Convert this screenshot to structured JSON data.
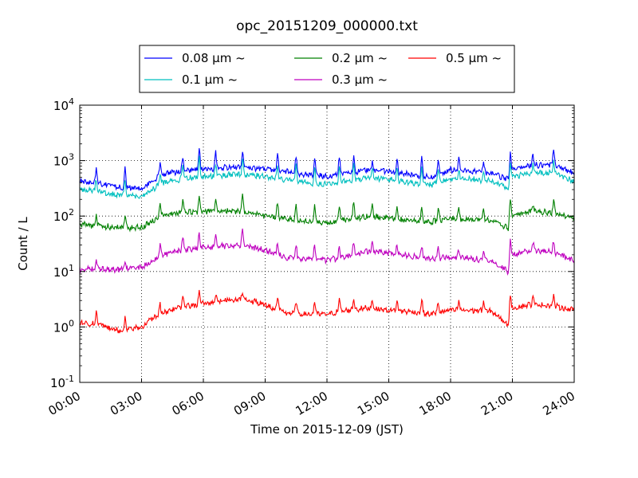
{
  "chart_data": {
    "type": "line",
    "title": "opc_20151209_000000.txt",
    "xlabel": "Time on 2015-12-09 (JST)",
    "ylabel": "Count / L",
    "yscale": "log",
    "xlim_hours": [
      0,
      24
    ],
    "ylim": [
      0.1,
      10000
    ],
    "grid": true,
    "legend_location": "top-center",
    "x_ticks": [
      {
        "value": 0,
        "label": "00:00"
      },
      {
        "value": 3,
        "label": "03:00"
      },
      {
        "value": 6,
        "label": "06:00"
      },
      {
        "value": 9,
        "label": "09:00"
      },
      {
        "value": 12,
        "label": "12:00"
      },
      {
        "value": 15,
        "label": "15:00"
      },
      {
        "value": 18,
        "label": "18:00"
      },
      {
        "value": 21,
        "label": "21:00"
      },
      {
        "value": 24,
        "label": "24:00"
      }
    ],
    "y_ticks": [
      {
        "value": 0.1,
        "base": "10",
        "exp": "-1"
      },
      {
        "value": 1,
        "base": "10",
        "exp": "0"
      },
      {
        "value": 10,
        "base": "10",
        "exp": "1"
      },
      {
        "value": 100,
        "base": "10",
        "exp": "2"
      },
      {
        "value": 1000,
        "base": "10",
        "exp": "3"
      },
      {
        "value": 10000,
        "base": "10",
        "exp": "4"
      }
    ],
    "series": [
      {
        "name": "0.08 μm ~",
        "color": "#0000ff",
        "x": [
          0,
          1,
          2,
          3,
          3.5,
          4,
          5,
          6,
          7,
          8,
          9,
          10,
          11,
          12,
          13,
          14,
          15,
          16,
          17,
          18,
          19,
          20,
          20.8,
          21,
          22,
          23,
          24
        ],
        "y": [
          420,
          380,
          330,
          310,
          420,
          560,
          650,
          700,
          740,
          760,
          700,
          640,
          560,
          520,
          600,
          680,
          640,
          560,
          500,
          680,
          640,
          600,
          460,
          720,
          820,
          820,
          600
        ],
        "spikes": [
          {
            "x": 0.8,
            "y": 700
          },
          {
            "x": 2.2,
            "y": 720
          },
          {
            "x": 3.9,
            "y": 920
          },
          {
            "x": 5.0,
            "y": 1200
          },
          {
            "x": 5.8,
            "y": 1650
          },
          {
            "x": 6.6,
            "y": 1400
          },
          {
            "x": 7.9,
            "y": 1600
          },
          {
            "x": 9.6,
            "y": 1200
          },
          {
            "x": 10.5,
            "y": 1200
          },
          {
            "x": 11.4,
            "y": 1100
          },
          {
            "x": 12.6,
            "y": 1200
          },
          {
            "x": 13.3,
            "y": 1200
          },
          {
            "x": 14.2,
            "y": 1000
          },
          {
            "x": 15.4,
            "y": 1000
          },
          {
            "x": 16.6,
            "y": 1100
          },
          {
            "x": 17.4,
            "y": 1100
          },
          {
            "x": 18.4,
            "y": 1100
          },
          {
            "x": 19.6,
            "y": 950
          },
          {
            "x": 20.9,
            "y": 1400
          },
          {
            "x": 22.0,
            "y": 1300
          },
          {
            "x": 23.0,
            "y": 1550
          }
        ]
      },
      {
        "name": "0.1 μm ~",
        "color": "#00bfbf",
        "x": [
          0,
          1,
          2,
          3,
          3.5,
          4,
          5,
          6,
          7,
          8,
          9,
          10,
          11,
          12,
          13,
          14,
          15,
          16,
          17,
          18,
          19,
          20,
          20.8,
          21,
          22,
          23,
          24
        ],
        "y": [
          300,
          270,
          240,
          230,
          300,
          400,
          470,
          520,
          540,
          560,
          510,
          460,
          400,
          370,
          430,
          490,
          460,
          400,
          360,
          480,
          460,
          430,
          320,
          520,
          600,
          600,
          420
        ],
        "spikes": [
          {
            "x": 0.8,
            "y": 480
          },
          {
            "x": 2.2,
            "y": 480
          },
          {
            "x": 3.9,
            "y": 620
          },
          {
            "x": 5.0,
            "y": 800
          },
          {
            "x": 5.8,
            "y": 1100
          },
          {
            "x": 6.6,
            "y": 900
          },
          {
            "x": 7.9,
            "y": 1050
          },
          {
            "x": 9.6,
            "y": 800
          },
          {
            "x": 10.5,
            "y": 800
          },
          {
            "x": 11.4,
            "y": 700
          },
          {
            "x": 12.6,
            "y": 800
          },
          {
            "x": 13.3,
            "y": 800
          },
          {
            "x": 14.2,
            "y": 700
          },
          {
            "x": 15.4,
            "y": 680
          },
          {
            "x": 16.6,
            "y": 720
          },
          {
            "x": 17.4,
            "y": 720
          },
          {
            "x": 18.4,
            "y": 700
          },
          {
            "x": 19.6,
            "y": 640
          },
          {
            "x": 20.9,
            "y": 950
          },
          {
            "x": 22.0,
            "y": 880
          },
          {
            "x": 23.0,
            "y": 1050
          }
        ]
      },
      {
        "name": "0.2 μm ~",
        "color": "#008000",
        "x": [
          0,
          1,
          2,
          3,
          3.5,
          4,
          5,
          6,
          7,
          8,
          9,
          10,
          11,
          12,
          13,
          14,
          15,
          16,
          17,
          18,
          19,
          20,
          20.8,
          21,
          22,
          23,
          24
        ],
        "y": [
          72,
          66,
          62,
          62,
          80,
          105,
          115,
          122,
          125,
          118,
          100,
          88,
          80,
          75,
          88,
          100,
          92,
          82,
          78,
          90,
          88,
          84,
          60,
          105,
          120,
          115,
          90
        ],
        "spikes": [
          {
            "x": 0.8,
            "y": 110
          },
          {
            "x": 2.2,
            "y": 110
          },
          {
            "x": 3.9,
            "y": 160
          },
          {
            "x": 5.0,
            "y": 200
          },
          {
            "x": 5.8,
            "y": 240
          },
          {
            "x": 6.6,
            "y": 200
          },
          {
            "x": 7.9,
            "y": 250
          },
          {
            "x": 9.6,
            "y": 180
          },
          {
            "x": 10.5,
            "y": 170
          },
          {
            "x": 11.4,
            "y": 150
          },
          {
            "x": 12.6,
            "y": 160
          },
          {
            "x": 13.3,
            "y": 180
          },
          {
            "x": 14.2,
            "y": 150
          },
          {
            "x": 15.4,
            "y": 140
          },
          {
            "x": 16.6,
            "y": 150
          },
          {
            "x": 17.4,
            "y": 140
          },
          {
            "x": 18.4,
            "y": 140
          },
          {
            "x": 19.6,
            "y": 130
          },
          {
            "x": 20.9,
            "y": 200
          },
          {
            "x": 22.0,
            "y": 170
          },
          {
            "x": 23.0,
            "y": 190
          }
        ]
      },
      {
        "name": "0.3 μm ~",
        "color": "#bf00bf",
        "x": [
          0,
          1,
          2,
          3,
          3.5,
          4,
          5,
          6,
          7,
          8,
          9,
          10,
          11,
          12,
          13,
          14,
          15,
          16,
          17,
          18,
          19,
          20,
          20.8,
          21,
          22,
          23,
          24
        ],
        "y": [
          11,
          11,
          11,
          12,
          15,
          20,
          24,
          27,
          29,
          30,
          24,
          18,
          17,
          16,
          19,
          23,
          22,
          19,
          17,
          18,
          17,
          16,
          10,
          20,
          24,
          22,
          16
        ],
        "spikes": [
          {
            "x": 0.8,
            "y": 16
          },
          {
            "x": 2.2,
            "y": 16
          },
          {
            "x": 3.9,
            "y": 30
          },
          {
            "x": 5.0,
            "y": 42
          },
          {
            "x": 5.8,
            "y": 50
          },
          {
            "x": 6.6,
            "y": 45
          },
          {
            "x": 7.9,
            "y": 55
          },
          {
            "x": 9.6,
            "y": 35
          },
          {
            "x": 10.5,
            "y": 32
          },
          {
            "x": 11.4,
            "y": 28
          },
          {
            "x": 12.6,
            "y": 30
          },
          {
            "x": 13.3,
            "y": 34
          },
          {
            "x": 14.2,
            "y": 32
          },
          {
            "x": 15.4,
            "y": 30
          },
          {
            "x": 16.6,
            "y": 30
          },
          {
            "x": 17.4,
            "y": 28
          },
          {
            "x": 18.4,
            "y": 26
          },
          {
            "x": 19.6,
            "y": 24
          },
          {
            "x": 20.9,
            "y": 38
          },
          {
            "x": 22.0,
            "y": 34
          },
          {
            "x": 23.0,
            "y": 35
          }
        ]
      },
      {
        "name": "0.5 μm ~",
        "color": "#ff0000",
        "x": [
          0,
          1,
          2,
          3,
          3.5,
          4,
          5,
          6,
          7,
          8,
          9,
          10,
          11,
          12,
          13,
          14,
          15,
          16,
          17,
          18,
          19,
          20,
          20.8,
          21,
          22,
          23,
          24
        ],
        "y": [
          1.2,
          1.1,
          0.85,
          1.0,
          1.4,
          1.8,
          2.3,
          2.6,
          3.0,
          3.2,
          2.5,
          1.8,
          1.7,
          1.7,
          2.0,
          2.2,
          2.0,
          1.9,
          1.7,
          2.0,
          2.0,
          1.9,
          1.1,
          2.2,
          2.6,
          2.4,
          2.0
        ],
        "spikes": [
          {
            "x": 0.8,
            "y": 1.8
          },
          {
            "x": 2.2,
            "y": 1.5
          },
          {
            "x": 3.9,
            "y": 2.5
          },
          {
            "x": 5.0,
            "y": 3.5
          },
          {
            "x": 5.8,
            "y": 4.4
          },
          {
            "x": 6.6,
            "y": 4.0
          },
          {
            "x": 7.9,
            "y": 4.5
          },
          {
            "x": 9.6,
            "y": 3.5
          },
          {
            "x": 10.5,
            "y": 3.0
          },
          {
            "x": 11.4,
            "y": 2.9
          },
          {
            "x": 12.6,
            "y": 3.2
          },
          {
            "x": 13.3,
            "y": 3.3
          },
          {
            "x": 14.2,
            "y": 3.2
          },
          {
            "x": 15.4,
            "y": 3.0
          },
          {
            "x": 16.6,
            "y": 3.2
          },
          {
            "x": 17.4,
            "y": 2.8
          },
          {
            "x": 18.4,
            "y": 3.0
          },
          {
            "x": 19.6,
            "y": 3.0
          },
          {
            "x": 20.9,
            "y": 4.0
          },
          {
            "x": 22.0,
            "y": 3.3
          },
          {
            "x": 23.0,
            "y": 3.6
          }
        ]
      }
    ]
  }
}
